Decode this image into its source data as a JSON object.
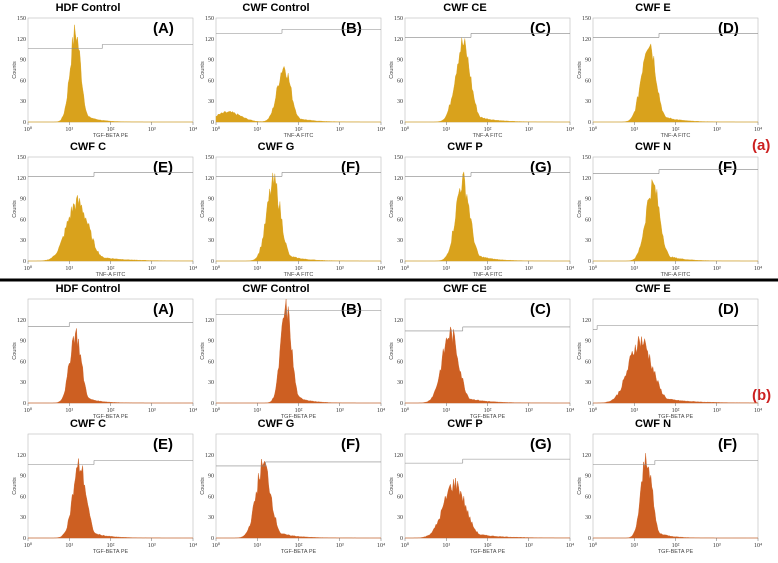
{
  "chart_data": {
    "type": "histogram-grid",
    "colors": {
      "a": "#d9a21c",
      "b": "#cd5f22",
      "separator": "#000000",
      "group_label": "#cc2020"
    },
    "panels": [
      {
        "group": "a",
        "title": "HDF Control",
        "tag": "(A)",
        "xlabel": "TGF-BETA PE",
        "x_ticks": [
          "10⁰",
          "10¹",
          "10²",
          "10³",
          "10⁴"
        ],
        "y_ticks": [
          "0",
          "30",
          "60",
          "90",
          "120",
          "150"
        ],
        "ylabel": "Counts",
        "ymax": 150,
        "peak": 1.15,
        "peak_height": 128,
        "width": 0.13,
        "gate_y": 106,
        "gate_x": 1.8
      },
      {
        "group": "a",
        "title": "CWF Control",
        "tag": "(B)",
        "xlabel": "TNF-A FITC",
        "x_ticks": [
          "10⁰",
          "10¹",
          "10²",
          "10³",
          "10⁴"
        ],
        "y_ticks": [
          "0",
          "30",
          "60",
          "90",
          "120",
          "150"
        ],
        "ylabel": "Counts",
        "ymax": 150,
        "peak": 1.65,
        "peak_height": 80,
        "width": 0.16,
        "secondary_peak": 0.3,
        "secondary_height": 14,
        "gate_y": 128,
        "gate_x": 1.6
      },
      {
        "group": "a",
        "title": "CWF CE",
        "tag": "(C)",
        "xlabel": "TNF-A FITC",
        "x_ticks": [
          "10⁰",
          "10¹",
          "10²",
          "10³",
          "10⁴"
        ],
        "y_ticks": [
          "0",
          "30",
          "60",
          "90",
          "120",
          "150"
        ],
        "ylabel": "Counts",
        "ymax": 150,
        "peak": 1.4,
        "peak_height": 112,
        "width": 0.18,
        "gate_y": 122,
        "gate_x": 1.6
      },
      {
        "group": "a",
        "title": "CWF E",
        "tag": "(D)",
        "xlabel": "TNF-A FITC",
        "x_ticks": [
          "10⁰",
          "10¹",
          "10²",
          "10³",
          "10⁴"
        ],
        "y_ticks": [
          "0",
          "30",
          "60",
          "90",
          "120",
          "150"
        ],
        "ylabel": "Counts",
        "ymax": 150,
        "peak": 1.35,
        "peak_height": 118,
        "width": 0.17,
        "gate_y": 122,
        "gate_x": 1.6
      },
      {
        "group": "a",
        "title": "CWF C",
        "tag": "(E)",
        "xlabel": "TNF-A FITC",
        "x_ticks": [
          "10⁰",
          "10¹",
          "10²",
          "10³",
          "10⁴"
        ],
        "y_ticks": [
          "0",
          "30",
          "60",
          "90",
          "120",
          "150"
        ],
        "ylabel": "Counts",
        "ymax": 150,
        "peak": 1.2,
        "peak_height": 84,
        "width": 0.26,
        "gate_y": 122,
        "gate_x": 1.6
      },
      {
        "group": "a",
        "title": "CWF G",
        "tag": "(F)",
        "xlabel": "TNF-A FITC",
        "x_ticks": [
          "10⁰",
          "10¹",
          "10²",
          "10³",
          "10⁴"
        ],
        "y_ticks": [
          "0",
          "30",
          "60",
          "90",
          "120",
          "150"
        ],
        "ylabel": "Counts",
        "ymax": 150,
        "peak": 1.4,
        "peak_height": 112,
        "width": 0.17,
        "gate_y": 122,
        "gate_x": 1.6
      },
      {
        "group": "a",
        "title": "CWF P",
        "tag": "(G)",
        "xlabel": "TNF-A FITC",
        "x_ticks": [
          "10⁰",
          "10¹",
          "10²",
          "10³",
          "10⁴"
        ],
        "y_ticks": [
          "0",
          "30",
          "60",
          "90",
          "120",
          "150"
        ],
        "ylabel": "Counts",
        "ymax": 150,
        "peak": 1.4,
        "peak_height": 115,
        "width": 0.17,
        "gate_y": 122,
        "gate_x": 1.6
      },
      {
        "group": "a",
        "title": "CWF N",
        "tag": "(F)",
        "xlabel": "TNF-A FITC",
        "x_ticks": [
          "10⁰",
          "10¹",
          "10²",
          "10³",
          "10⁴"
        ],
        "y_ticks": [
          "0",
          "30",
          "60",
          "90",
          "120",
          "150"
        ],
        "ylabel": "Counts",
        "ymax": 150,
        "peak": 1.45,
        "peak_height": 108,
        "width": 0.17,
        "gate_y": 126,
        "gate_x": 1.6
      },
      {
        "group": "b",
        "title": "HDF Control",
        "tag": "(A)",
        "xlabel": "TGF-BETA PE",
        "x_ticks": [
          "10⁰",
          "10¹",
          "10²",
          "10³",
          "10⁴"
        ],
        "y_ticks": [
          "0",
          "30",
          "60",
          "90",
          "120"
        ],
        "ylabel": "Counts",
        "ymax": 150,
        "peak": 1.15,
        "peak_height": 100,
        "width": 0.14,
        "gate_y": 110,
        "gate_x": 1.0
      },
      {
        "group": "b",
        "title": "CWF Control",
        "tag": "(B)",
        "xlabel": "TGF-BETA PE",
        "x_ticks": [
          "10⁰",
          "10¹",
          "10²",
          "10³",
          "10⁴"
        ],
        "y_ticks": [
          "0",
          "30",
          "60",
          "90",
          "120"
        ],
        "ylabel": "Counts",
        "ymax": 150,
        "peak": 1.7,
        "peak_height": 135,
        "width": 0.13,
        "gate_y": 128,
        "gate_x": 1.7
      },
      {
        "group": "b",
        "title": "CWF CE",
        "tag": "(C)",
        "xlabel": "TGF-BETA PE",
        "x_ticks": [
          "10⁰",
          "10¹",
          "10²",
          "10³",
          "10⁴"
        ],
        "y_ticks": [
          "0",
          "30",
          "60",
          "90",
          "120"
        ],
        "ylabel": "Counts",
        "ymax": 150,
        "peak": 1.1,
        "peak_height": 100,
        "width": 0.2,
        "gate_y": 104,
        "gate_x": 1.4
      },
      {
        "group": "b",
        "title": "CWF E",
        "tag": "(D)",
        "xlabel": "TGF-BETA PE",
        "x_ticks": [
          "10⁰",
          "10¹",
          "10²",
          "10³",
          "10⁴"
        ],
        "y_ticks": [
          "0",
          "30",
          "60",
          "90",
          "120"
        ],
        "ylabel": "Counts",
        "ymax": 150,
        "peak": 1.15,
        "peak_height": 90,
        "width": 0.28,
        "gate_y": 106,
        "gate_x": 0.1
      },
      {
        "group": "b",
        "title": "CWF C",
        "tag": "(E)",
        "xlabel": "TGF-BETA PE",
        "x_ticks": [
          "10⁰",
          "10¹",
          "10²",
          "10³",
          "10⁴"
        ],
        "y_ticks": [
          "0",
          "30",
          "60",
          "90",
          "120"
        ],
        "ylabel": "Counts",
        "ymax": 150,
        "peak": 1.25,
        "peak_height": 104,
        "width": 0.16,
        "gate_y": 106,
        "gate_x": 1.6
      },
      {
        "group": "b",
        "title": "CWF G",
        "tag": "(F)",
        "xlabel": "TGF-BETA PE",
        "x_ticks": [
          "10⁰",
          "10¹",
          "10²",
          "10³",
          "10⁴"
        ],
        "y_ticks": [
          "0",
          "30",
          "60",
          "90",
          "120"
        ],
        "ylabel": "Counts",
        "ymax": 150,
        "peak": 1.15,
        "peak_height": 105,
        "width": 0.18,
        "gate_y": 104,
        "gate_x": 1.2
      },
      {
        "group": "b",
        "title": "CWF P",
        "tag": "(G)",
        "xlabel": "TGF-BETA PE",
        "x_ticks": [
          "10⁰",
          "10¹",
          "10²",
          "10³",
          "10⁴"
        ],
        "y_ticks": [
          "0",
          "30",
          "60",
          "90",
          "120"
        ],
        "ylabel": "Counts",
        "ymax": 150,
        "peak": 1.2,
        "peak_height": 78,
        "width": 0.26,
        "gate_y": 108,
        "gate_x": 1.4
      },
      {
        "group": "b",
        "title": "CWF N",
        "tag": "(F)",
        "xlabel": "TGF-BETA PE",
        "x_ticks": [
          "10⁰",
          "10¹",
          "10²",
          "10³",
          "10⁴"
        ],
        "y_ticks": [
          "0",
          "30",
          "60",
          "90",
          "120"
        ],
        "ylabel": "Counts",
        "ymax": 150,
        "peak": 1.3,
        "peak_height": 116,
        "width": 0.13,
        "gate_y": 106,
        "gate_x": 1.5
      }
    ],
    "group_labels": [
      "(a)",
      "(b)"
    ]
  }
}
